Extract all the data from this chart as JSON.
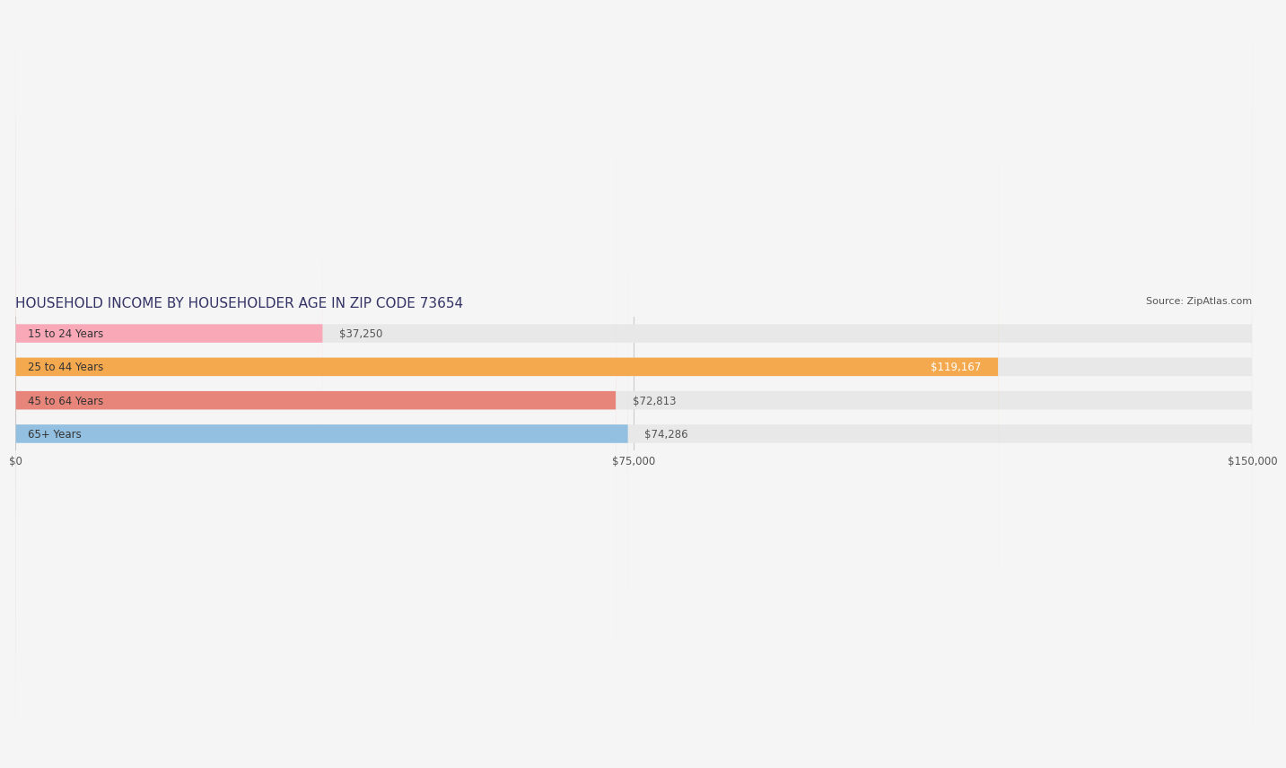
{
  "title": "HOUSEHOLD INCOME BY HOUSEHOLDER AGE IN ZIP CODE 73654",
  "source": "Source: ZipAtlas.com",
  "categories": [
    "15 to 24 Years",
    "25 to 44 Years",
    "45 to 64 Years",
    "65+ Years"
  ],
  "values": [
    37250,
    119167,
    72813,
    74286
  ],
  "bar_colors": [
    "#f9a8b8",
    "#f5a94e",
    "#e8857a",
    "#93bfe0"
  ],
  "label_colors": [
    "#555555",
    "#ffffff",
    "#555555",
    "#555555"
  ],
  "xlim": [
    0,
    150000
  ],
  "xticks": [
    0,
    75000,
    150000
  ],
  "xtick_labels": [
    "$0",
    "$75,000",
    "$150,000"
  ],
  "bar_height": 0.55,
  "background_color": "#f5f5f5",
  "bar_bg_color": "#e8e8e8",
  "title_fontsize": 11,
  "label_fontsize": 8.5,
  "category_fontsize": 8.5,
  "value_fontsize": 8.5,
  "source_fontsize": 8
}
